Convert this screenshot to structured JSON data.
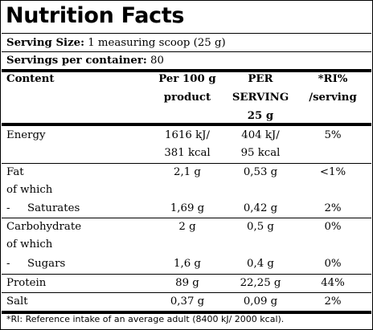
{
  "title": "Nutrition Facts",
  "serving_size": {
    "label": "Serving Size:",
    "value": "1 measuring scoop (25 g)"
  },
  "servings_per_container": {
    "label": "Servings per container:",
    "value": "80"
  },
  "table": {
    "headers": {
      "content": "Content",
      "per100_line1": "Per 100 g",
      "per100_line2": "product",
      "perserving_line1": "PER",
      "perserving_line2": "SERVING",
      "perserving_line3": "25 g",
      "ri_line1": "*RI%",
      "ri_line2": "/serving"
    },
    "energy": {
      "name": "Energy",
      "per100_a": "1616 kJ/",
      "per100_b": "381 kcal",
      "serving_a": "404 kJ/",
      "serving_b": "95 kcal",
      "ri": "5%"
    },
    "fat": {
      "name": "Fat",
      "of_which": "of which",
      "per100": "2,1 g",
      "serving": "0,53 g",
      "ri": "<1%"
    },
    "saturates": {
      "dash": "-",
      "name": "Saturates",
      "per100": "1,69 g",
      "serving": "0,42 g",
      "ri": "2%"
    },
    "carbohydrate": {
      "name": "Carbohydrate",
      "of_which": "of which",
      "per100": "2 g",
      "serving": "0,5 g",
      "ri": "0%"
    },
    "sugars": {
      "dash": "-",
      "name": "Sugars",
      "per100": "1,6 g",
      "serving": "0,4 g",
      "ri": "0%"
    },
    "protein": {
      "name": "Protein",
      "per100": "89 g",
      "serving": "22,25 g",
      "ri": "44%"
    },
    "salt": {
      "name": "Salt",
      "per100": "0,37 g",
      "serving": "0,09 g",
      "ri": "2%"
    }
  },
  "footnote": "*RI: Reference intake of an average adult (8400 kJ/ 2000 kcal)."
}
